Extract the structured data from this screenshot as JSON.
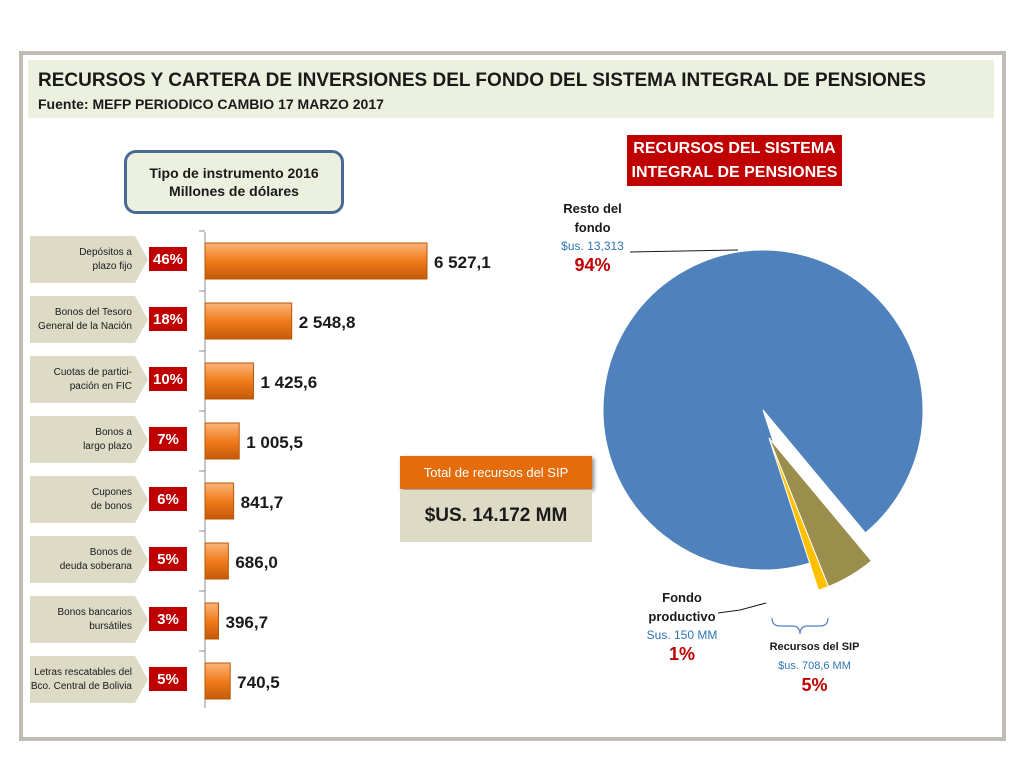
{
  "header": {
    "title": "RECURSOS Y CARTERA DE INVERSIONES DEL FONDO DEL SISTEMA INTEGRAL DE PENSIONES",
    "source": "Fuente: MEFP PERIODICO CAMBIO 17 MARZO 2017"
  },
  "instrument_box": {
    "line1": "Tipo de instrumento 2016",
    "line2": "Millones de dólares"
  },
  "sip_title": {
    "line1": "RECURSOS DEL SISTEMA",
    "line2": "INTEGRAL DE PENSIONES"
  },
  "total": {
    "label": "Total de recursos del SIP",
    "value": "$US. 14.172 MM"
  },
  "pie_labels": {
    "resto": {
      "name1": "Resto del",
      "name2": "fondo",
      "value": "$us. 13,313",
      "pct": "94%"
    },
    "fondo_productivo": {
      "name1": "Fondo",
      "name2": "productivo",
      "value": "Sus. 150 MM",
      "pct": "1%"
    },
    "recursos_sip": {
      "name": "Recursos del SIP",
      "value": "$us. 708,6 MM",
      "pct": "5%"
    }
  },
  "chart_data": [
    {
      "type": "bar",
      "orientation": "horizontal",
      "categories": [
        [
          "Depósitos a",
          "plazo fijo"
        ],
        [
          "Bonos del Tesoro",
          "General de la Nación"
        ],
        [
          "Cuotas de partici-",
          "pación en FIC"
        ],
        [
          "Bonos a",
          "largo plazo"
        ],
        [
          "Cupones",
          "de bonos"
        ],
        [
          "Bonos de",
          "deuda soberana"
        ],
        [
          "Bonos bancarios",
          "bursátiles"
        ],
        [
          "Letras rescatables del",
          "Bco. Central de Bolivia"
        ]
      ],
      "values": [
        6527.1,
        2548.8,
        1425.6,
        1005.5,
        841.7,
        686.0,
        396.7,
        740.5
      ],
      "value_labels": [
        "6 527,1",
        "2 548,8",
        "1 425,6",
        "1 005,5",
        "841,7",
        "686,0",
        "396,7",
        "740,5"
      ],
      "percent_labels": [
        "46%",
        "18%",
        "10%",
        "7%",
        "6%",
        "5%",
        "3%",
        "5%"
      ],
      "bar_color": "#e46c0a",
      "percent_color": "#c00000",
      "xlim": [
        0,
        7000
      ]
    },
    {
      "type": "pie",
      "slices": [
        {
          "label": "Resto del fondo",
          "value": 13313,
          "percent": 94,
          "color": "#4f81bd"
        },
        {
          "label": "Fondo productivo",
          "value": 150,
          "percent": 1,
          "color": "#ffc000"
        },
        {
          "label": "Recursos del SIP",
          "value": 708.6,
          "percent": 5,
          "color": "#9b8d4c"
        }
      ],
      "units": "millones de dólares"
    }
  ]
}
